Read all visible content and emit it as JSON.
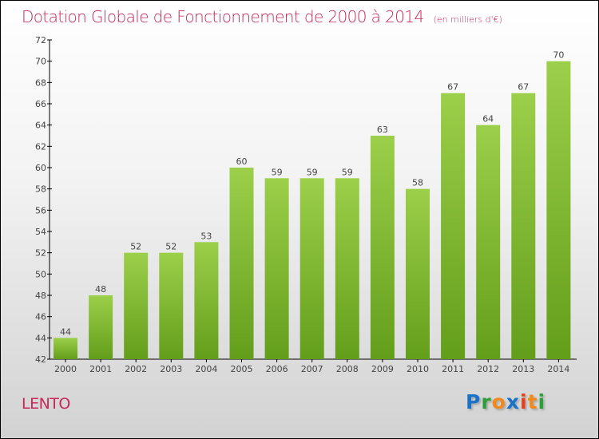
{
  "title": "Dotation Globale de Fonctionnement de 2000 à 2014",
  "unit": "(en milliers d'€)",
  "city": "LENTO",
  "logo": {
    "text": "Proxiti",
    "letters": [
      "P",
      "r",
      "o",
      "x",
      "i",
      "t",
      "i"
    ],
    "colors": [
      "#1a73c8",
      "#2e9e3a",
      "#f08a1c",
      "#1a73c8",
      "#e8401c",
      "#f08a1c",
      "#2e9e3a"
    ]
  },
  "colors": {
    "bar_top": "#9ccf4a",
    "bar_bottom": "#639e1a",
    "title": "#c8285a"
  },
  "chart_data": {
    "type": "bar",
    "title": "Dotation Globale de Fonctionnement de 2000 à 2014",
    "categories": [
      "2000",
      "2001",
      "2002",
      "2003",
      "2004",
      "2005",
      "2006",
      "2007",
      "2008",
      "2009",
      "2010",
      "2011",
      "2012",
      "2013",
      "2014"
    ],
    "values": [
      44,
      48,
      52,
      52,
      53,
      60,
      59,
      59,
      59,
      63,
      58,
      67,
      64,
      67,
      70
    ],
    "ylim": [
      42,
      72
    ],
    "yticks": [
      42,
      44,
      46,
      48,
      50,
      52,
      54,
      56,
      58,
      60,
      62,
      64,
      66,
      68,
      70,
      72
    ],
    "xlabel": "",
    "ylabel": "(en milliers d'€)",
    "grid": false
  }
}
